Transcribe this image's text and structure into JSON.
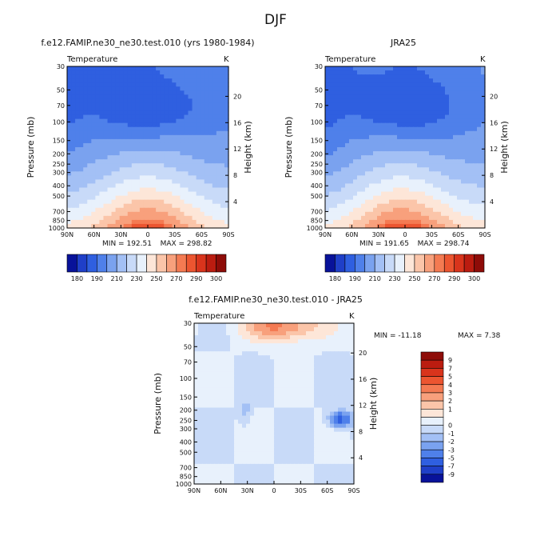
{
  "figure_title": "DJF",
  "chart_data": [
    {
      "type": "heatmap",
      "title": "f.e12.FAMIP.ne30_ne30.test.010 (yrs 1980-1984)",
      "variable": "Temperature",
      "units": "K",
      "xlabel": "",
      "ylabel": "Pressure (mb)",
      "ylabel_right": "Height (km)",
      "x_ticks": [
        "90N",
        "60N",
        "30N",
        "0",
        "30S",
        "60S",
        "90S"
      ],
      "y_ticks": [
        30,
        50,
        70,
        100,
        150,
        200,
        250,
        300,
        400,
        500,
        700,
        850,
        1000
      ],
      "height_ticks": [
        4,
        8,
        12,
        16,
        20
      ],
      "stats": {
        "min_label": "MIN = 192.51",
        "max_label": "MAX = 298.82",
        "min": 192.51,
        "max": 298.82
      },
      "colorbar": {
        "labels": [
          "180",
          "190",
          "210",
          "230",
          "250",
          "270",
          "290",
          "300"
        ],
        "colors": [
          "#08129a",
          "#1f3fc8",
          "#2f5fe0",
          "#4f80ea",
          "#7aa2ef",
          "#a3c0f5",
          "#c8daf8",
          "#e8f1fc",
          "#fde6d8",
          "#fbc5a9",
          "#f8a07c",
          "#f47a52",
          "#ec5530",
          "#d9341c",
          "#bb1c10",
          "#8e0c08"
        ]
      }
    },
    {
      "type": "heatmap",
      "title": "JRA25",
      "variable": "Temperature",
      "units": "K",
      "xlabel": "",
      "ylabel": "Pressure (mb)",
      "ylabel_right": "Height (km)",
      "x_ticks": [
        "90N",
        "60N",
        "30N",
        "0",
        "30S",
        "60S",
        "90S"
      ],
      "y_ticks": [
        30,
        50,
        70,
        100,
        150,
        200,
        250,
        300,
        400,
        500,
        700,
        850,
        1000
      ],
      "height_ticks": [
        4,
        8,
        12,
        16,
        20
      ],
      "stats": {
        "min_label": "MIN = 191.65",
        "max_label": "MAX = 298.74",
        "min": 191.65,
        "max": 298.74
      },
      "colorbar": {
        "labels": [
          "180",
          "190",
          "210",
          "230",
          "250",
          "270",
          "290",
          "300"
        ],
        "colors": [
          "#08129a",
          "#1f3fc8",
          "#2f5fe0",
          "#4f80ea",
          "#7aa2ef",
          "#a3c0f5",
          "#c8daf8",
          "#e8f1fc",
          "#fde6d8",
          "#fbc5a9",
          "#f8a07c",
          "#f47a52",
          "#ec5530",
          "#d9341c",
          "#bb1c10",
          "#8e0c08"
        ]
      }
    },
    {
      "type": "heatmap",
      "title": "f.e12.FAMIP.ne30_ne30.test.010 - JRA25",
      "variable": "Temperature",
      "units": "K",
      "xlabel": "",
      "ylabel": "Pressure (mb)",
      "ylabel_right": "Height (km)",
      "x_ticks": [
        "90N",
        "60N",
        "30N",
        "0",
        "30S",
        "60S",
        "90S"
      ],
      "y_ticks": [
        30,
        50,
        70,
        100,
        150,
        200,
        250,
        300,
        400,
        500,
        700,
        850,
        1000
      ],
      "height_ticks": [
        4,
        8,
        12,
        16,
        20
      ],
      "stats": {
        "min_label": "MIN = -11.18",
        "max_label": "MAX = 7.38",
        "min": -11.18,
        "max": 7.38
      },
      "colorbar": {
        "labels": [
          "9",
          "7",
          "5",
          "4",
          "3",
          "2",
          "1",
          "0",
          "-1",
          "-2",
          "-3",
          "-5",
          "-7",
          "-9"
        ],
        "colors": [
          "#8e0c08",
          "#bb1c10",
          "#d9341c",
          "#ec5530",
          "#f47a52",
          "#f8a07c",
          "#fbc5a9",
          "#fde6d8",
          "#e8f1fc",
          "#c8daf8",
          "#a3c0f5",
          "#7aa2ef",
          "#4f80ea",
          "#2f5fe0",
          "#1f3fc8",
          "#08129a"
        ]
      }
    }
  ]
}
